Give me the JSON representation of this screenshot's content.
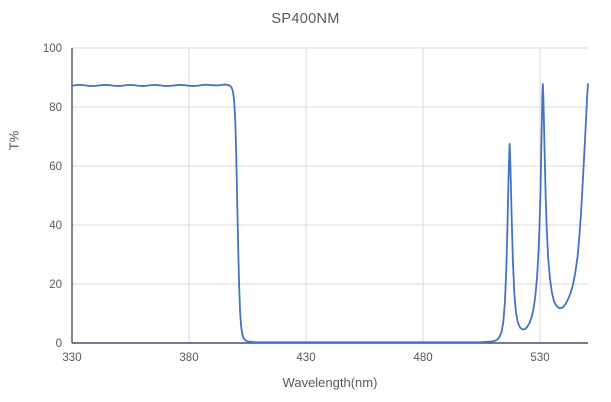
{
  "chart_data": {
    "type": "line",
    "title": "SP400NM",
    "xlabel": "Wavelength(nm)",
    "ylabel": "T%",
    "xlim": [
      330,
      550.5
    ],
    "ylim": [
      0,
      100
    ],
    "x_ticks": [
      330,
      380,
      430,
      480,
      530
    ],
    "y_ticks": [
      0,
      20,
      40,
      60,
      80,
      100
    ],
    "grid": true,
    "legend_position": "none",
    "line_color": "#4472C4",
    "gridline_color": "#D9D9D9",
    "axis_color": "#44546A",
    "text_color": "#595959",
    "description": "Shortpass filter transmission spectrum: ~87% transmission from 330-398nm, sharp cutoff at ~400nm, blocked (~0%) from 405-512nm, leakage spikes at ~517nm (67.5%) and ~531nm (88%), valley minima ~4.6% at 523nm and ~11.8% at 538nm, rising to ~88% at 550nm",
    "series": [
      {
        "name": "SP400NM",
        "points": [
          [
            330,
            87.2
          ],
          [
            332,
            87.45
          ],
          [
            334,
            87.5
          ],
          [
            336,
            87.3
          ],
          [
            338,
            87.1
          ],
          [
            340,
            87.15
          ],
          [
            342,
            87.35
          ],
          [
            344,
            87.5
          ],
          [
            346,
            87.4
          ],
          [
            348,
            87.2
          ],
          [
            350,
            87.1
          ],
          [
            352,
            87.25
          ],
          [
            354,
            87.5
          ],
          [
            356,
            87.45
          ],
          [
            358,
            87.25
          ],
          [
            360,
            87.1
          ],
          [
            362,
            87.2
          ],
          [
            364,
            87.45
          ],
          [
            366,
            87.5
          ],
          [
            368,
            87.3
          ],
          [
            370,
            87.1
          ],
          [
            372,
            87.15
          ],
          [
            374,
            87.35
          ],
          [
            376,
            87.5
          ],
          [
            378,
            87.4
          ],
          [
            380,
            87.2
          ],
          [
            382,
            87.1
          ],
          [
            384,
            87.25
          ],
          [
            386,
            87.5
          ],
          [
            388,
            87.55
          ],
          [
            390,
            87.4
          ],
          [
            392,
            87.3
          ],
          [
            394,
            87.5
          ],
          [
            395.5,
            87.6
          ],
          [
            396.5,
            87.5
          ],
          [
            397.5,
            87.2
          ],
          [
            398.2,
            86.6
          ],
          [
            398.8,
            85.2
          ],
          [
            399.3,
            82
          ],
          [
            399.8,
            75
          ],
          [
            400.2,
            63
          ],
          [
            400.6,
            48
          ],
          [
            401,
            33
          ],
          [
            401.4,
            20
          ],
          [
            401.8,
            11
          ],
          [
            402.3,
            5.5
          ],
          [
            402.8,
            2.8
          ],
          [
            403.5,
            1.4
          ],
          [
            404.5,
            0.7
          ],
          [
            406,
            0.4
          ],
          [
            408,
            0.3
          ],
          [
            412,
            0.25
          ],
          [
            420,
            0.25
          ],
          [
            430,
            0.25
          ],
          [
            440,
            0.25
          ],
          [
            450,
            0.25
          ],
          [
            460,
            0.25
          ],
          [
            470,
            0.25
          ],
          [
            480,
            0.25
          ],
          [
            490,
            0.25
          ],
          [
            500,
            0.25
          ],
          [
            505,
            0.3
          ],
          [
            508,
            0.4
          ],
          [
            510,
            0.6
          ],
          [
            511.5,
            1
          ],
          [
            512.5,
            1.8
          ],
          [
            513.5,
            3.5
          ],
          [
            514.3,
            7
          ],
          [
            515,
            14
          ],
          [
            515.6,
            25
          ],
          [
            516.1,
            40
          ],
          [
            516.5,
            55
          ],
          [
            516.8,
            63
          ],
          [
            517,
            67.5
          ],
          [
            517.2,
            64
          ],
          [
            517.5,
            55
          ],
          [
            517.9,
            42
          ],
          [
            518.4,
            28
          ],
          [
            519,
            17
          ],
          [
            519.7,
            10.5
          ],
          [
            520.5,
            7
          ],
          [
            521.5,
            5.2
          ],
          [
            522.5,
            4.6
          ],
          [
            523.5,
            4.7
          ],
          [
            524.5,
            5.4
          ],
          [
            525.5,
            6.8
          ],
          [
            526.5,
            9
          ],
          [
            527.3,
            12
          ],
          [
            528,
            16
          ],
          [
            528.7,
            22
          ],
          [
            529.3,
            30
          ],
          [
            529.8,
            40
          ],
          [
            530.2,
            52
          ],
          [
            530.5,
            64
          ],
          [
            530.8,
            76
          ],
          [
            531,
            84
          ],
          [
            531.2,
            87.8
          ],
          [
            531.4,
            84
          ],
          [
            531.7,
            74
          ],
          [
            532,
            63
          ],
          [
            532.4,
            50
          ],
          [
            532.9,
            38
          ],
          [
            533.5,
            28.5
          ],
          [
            534.3,
            21.5
          ],
          [
            535.1,
            17
          ],
          [
            536,
            14
          ],
          [
            537,
            12.6
          ],
          [
            538,
            11.9
          ],
          [
            539,
            11.8
          ],
          [
            540,
            12.3
          ],
          [
            541,
            13.3
          ],
          [
            542,
            14.9
          ],
          [
            543,
            16.8
          ],
          [
            544,
            19.5
          ],
          [
            545,
            23.5
          ],
          [
            546,
            29
          ],
          [
            546.8,
            36
          ],
          [
            547.5,
            44
          ],
          [
            548.1,
            52
          ],
          [
            548.7,
            61
          ],
          [
            549.3,
            70
          ],
          [
            549.8,
            78
          ],
          [
            550.1,
            83
          ],
          [
            550.4,
            86.5
          ],
          [
            550.5,
            87.8
          ]
        ]
      }
    ]
  }
}
